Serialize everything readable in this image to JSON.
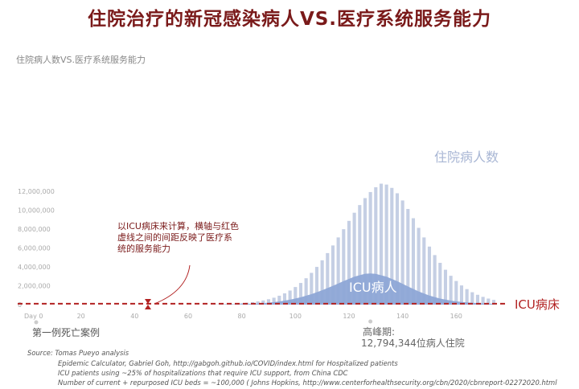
{
  "page": {
    "title": "住院治疗的新冠感染病人VS.医疗系统服务能力"
  },
  "chart_data": {
    "type": "bar",
    "title": "住院治疗的新冠感染病人VS.医疗系统服务能力",
    "subtitle": "住院病人数VS.医疗系统服务能力",
    "xlabel": "",
    "ylabel": "",
    "xlim": [
      0,
      175
    ],
    "ylim": [
      0,
      13000000
    ],
    "x_ticks": [
      {
        "value": 0,
        "label": "Day 0"
      },
      {
        "value": 20,
        "label": "20"
      },
      {
        "value": 40,
        "label": "40"
      },
      {
        "value": 60,
        "label": "60"
      },
      {
        "value": 80,
        "label": "80"
      },
      {
        "value": 100,
        "label": "100"
      },
      {
        "value": 120,
        "label": "120"
      },
      {
        "value": 140,
        "label": "140"
      },
      {
        "value": 160,
        "label": "160"
      }
    ],
    "y_ticks": [
      {
        "value": 0,
        "label": "0"
      },
      {
        "value": 2000000,
        "label": "2,000,000"
      },
      {
        "value": 4000000,
        "label": "4,000,000"
      },
      {
        "value": 6000000,
        "label": "6,000,000"
      },
      {
        "value": 8000000,
        "label": "8,000,000"
      },
      {
        "value": 10000000,
        "label": "10,000,000"
      },
      {
        "value": 12000000,
        "label": "12,000,000"
      }
    ],
    "grid": false,
    "series": [
      {
        "name": "住院病人数",
        "x": [
          70,
          72,
          74,
          76,
          78,
          80,
          82,
          84,
          86,
          88,
          90,
          92,
          94,
          96,
          98,
          100,
          102,
          104,
          106,
          108,
          110,
          112,
          114,
          116,
          118,
          120,
          122,
          124,
          126,
          128,
          130,
          132,
          134,
          136,
          138,
          140,
          142,
          144,
          146,
          148,
          150,
          152,
          154,
          156,
          158,
          160,
          162,
          164,
          166,
          168,
          170,
          172,
          174
        ],
        "values": [
          30000,
          40000,
          60000,
          80000,
          110000,
          150000,
          200000,
          260000,
          340000,
          440000,
          570000,
          730000,
          940000,
          1190000,
          1490000,
          1860000,
          2290000,
          2790000,
          3360000,
          3990000,
          4690000,
          5450000,
          6260000,
          7110000,
          7980000,
          8860000,
          9720000,
          10530000,
          11270000,
          11910000,
          12420000,
          12794344,
          12700000,
          12350000,
          11780000,
          11020000,
          10120000,
          9140000,
          8120000,
          7110000,
          6140000,
          5240000,
          4420000,
          3690000,
          3050000,
          2500000,
          2030000,
          1640000,
          1310000,
          1040000,
          820000,
          640000,
          500000
        ]
      },
      {
        "name": "ICU病人",
        "x": [
          70,
          74,
          78,
          82,
          86,
          90,
          94,
          98,
          102,
          106,
          110,
          114,
          118,
          122,
          126,
          128,
          130,
          134,
          138,
          142,
          146,
          150,
          154,
          158,
          162,
          166,
          170,
          174
        ],
        "values": [
          10000,
          20000,
          40000,
          70000,
          120000,
          200000,
          330000,
          520000,
          780000,
          1110000,
          1520000,
          1990000,
          2490000,
          2950000,
          3260000,
          3300000,
          3250000,
          2960000,
          2480000,
          1920000,
          1390000,
          960000,
          640000,
          420000,
          280000,
          190000,
          130000,
          90000
        ]
      }
    ],
    "capacity": {
      "name": "ICU病床",
      "value": 100000
    },
    "markers": {
      "first_death": {
        "x": 0,
        "label": "第一例死亡案例"
      },
      "peak": {
        "x": 128,
        "label": "高峰期:",
        "value_label": "12,794,344位病人住院"
      },
      "capacity_gap": {
        "x": 45
      }
    },
    "series_labels": {
      "hospitalized": "住院病人数",
      "icu": "ICU病人"
    },
    "annotation": {
      "lines": [
        "以ICU病床来计算，横轴与红色",
        "虚线之间的间距反映了医疗系",
        "统的服务能力"
      ]
    },
    "colors": {
      "bars": "#c5cfe4",
      "icu_area": "#8ea6d6",
      "capacity_line": "#b22222",
      "title": "#7a1a1a",
      "axis_text": "#aaaaaa",
      "hospitalized_label": "#a8b6d4",
      "icu_label": "#ffffff",
      "annotation_text": "#7a1a1a",
      "capacity_label": "#b22222"
    }
  },
  "source": {
    "lines": [
      "Source: Tomas Pueyo analysis",
      "Epidemic Calculator, Gabriel Goh, http://gabgoh.github.io/COVID/index.html for Hospitalized patients",
      "ICU patients using ~25% of hospitalizations that require ICU support, from China CDC",
      "Number of current + repurposed ICU beds = ~100,000 ( Johns Hopkins, http://www.centerforhealthsecurity.org/cbn/2020/cbnreport-02272020.html"
    ]
  }
}
